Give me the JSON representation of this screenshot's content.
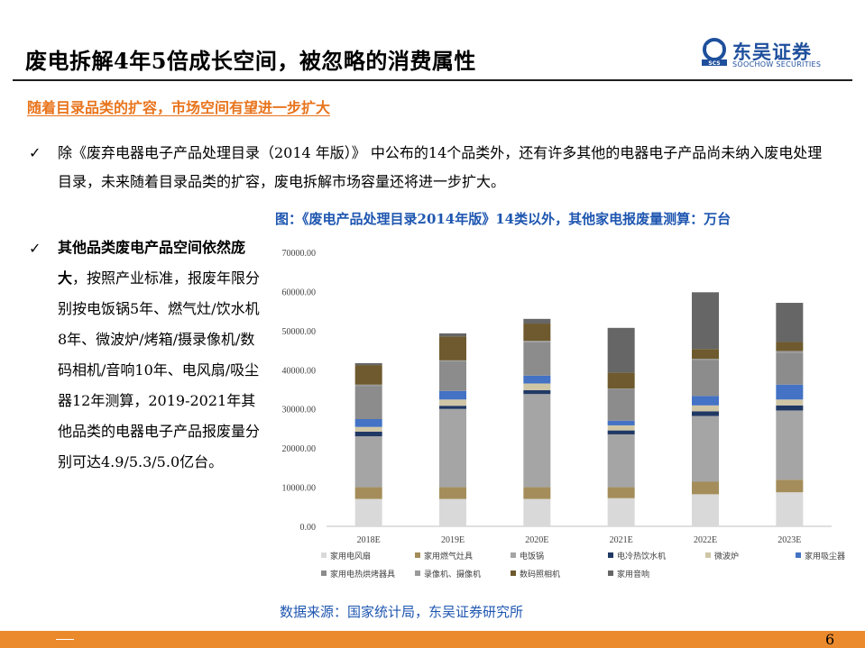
{
  "header": {
    "title": "废电拆解4年5倍成长空间，被忽略的消费属性",
    "logo_cn": "东吴证券",
    "logo_en": "SOOCHOW SECURITIES",
    "logo_mark": "SCS"
  },
  "section": {
    "subheading": "随着目录品类的扩容，市场空间有望进一步扩大",
    "bullet1": "除《废弃电器电子产品处理目录（2014 年版）》 中公布的14个品类外，还有许多其他的电器电子产品尚未纳入废电处理目录，未来随着目录品类的扩容，废电拆解市场容量还将进一步扩大。",
    "bullet2_bold": "其他品类废电产品空间依然庞大",
    "bullet2_rest": "，按照产业标准，报废年限分别按电饭锅5年、燃气灶/饮水机8年、微波炉/烤箱/摄录像机/数码相机/音响10年、电风扇/吸尘器12年测算，2019-2021年其他品类的电器电子产品报废量分别可达4.9/5.3/5.0亿台。",
    "check_symbol": "✓"
  },
  "figure": {
    "caption": "图：《废电产品处理目录2014年版》14类以外，其他家电报废量测算：万台",
    "source": "数据来源：国家统计局，东吴证券研究所"
  },
  "chart_data": {
    "type": "bar",
    "stacked": true,
    "categories": [
      "2018E",
      "2019E",
      "2020E",
      "2021E",
      "2022E",
      "2023E"
    ],
    "ylim": [
      0,
      70000
    ],
    "yticks": [
      "0.00",
      "10000.00",
      "20000.00",
      "30000.00",
      "40000.00",
      "50000.00",
      "60000.00",
      "70000.00"
    ],
    "grid": false,
    "legend_position": "bottom",
    "series": [
      {
        "name": "家用电风扇",
        "color": "#d9d9d9",
        "values": [
          7000,
          7000,
          7000,
          7200,
          8200,
          8700
        ]
      },
      {
        "name": "家用燃气灶具",
        "color": "#a48d5a",
        "values": [
          3000,
          3000,
          3000,
          2800,
          3200,
          3200
        ]
      },
      {
        "name": "电饭锅",
        "color": "#a5a5a5",
        "values": [
          13000,
          20000,
          23800,
          13500,
          16800,
          17700
        ]
      },
      {
        "name": "电冷热饮水机",
        "color": "#203864",
        "values": [
          1200,
          800,
          1000,
          1000,
          1200,
          1300
        ]
      },
      {
        "name": "微波炉",
        "color": "#cfc6a6",
        "values": [
          1200,
          1600,
          1700,
          1300,
          1500,
          1500
        ]
      },
      {
        "name": "家用吸尘器",
        "color": "#4472c4",
        "values": [
          2000,
          2200,
          2000,
          1200,
          2400,
          3800
        ]
      },
      {
        "name": "家用电热烘烤器具",
        "color": "#8c8c8c",
        "values": [
          8500,
          7600,
          8500,
          8000,
          9200,
          8200
        ]
      },
      {
        "name": "录像机、摄像机",
        "color": "#9a9a9a",
        "values": [
          300,
          200,
          400,
          200,
          300,
          400
        ]
      },
      {
        "name": "数码照相机",
        "color": "#6e5a2e",
        "values": [
          5000,
          6100,
          4400,
          4100,
          2500,
          2300
        ]
      },
      {
        "name": "家用音响",
        "color": "#666666",
        "values": [
          500,
          800,
          1200,
          11400,
          14500,
          10000
        ]
      }
    ]
  },
  "footer": {
    "page_number": "6"
  }
}
